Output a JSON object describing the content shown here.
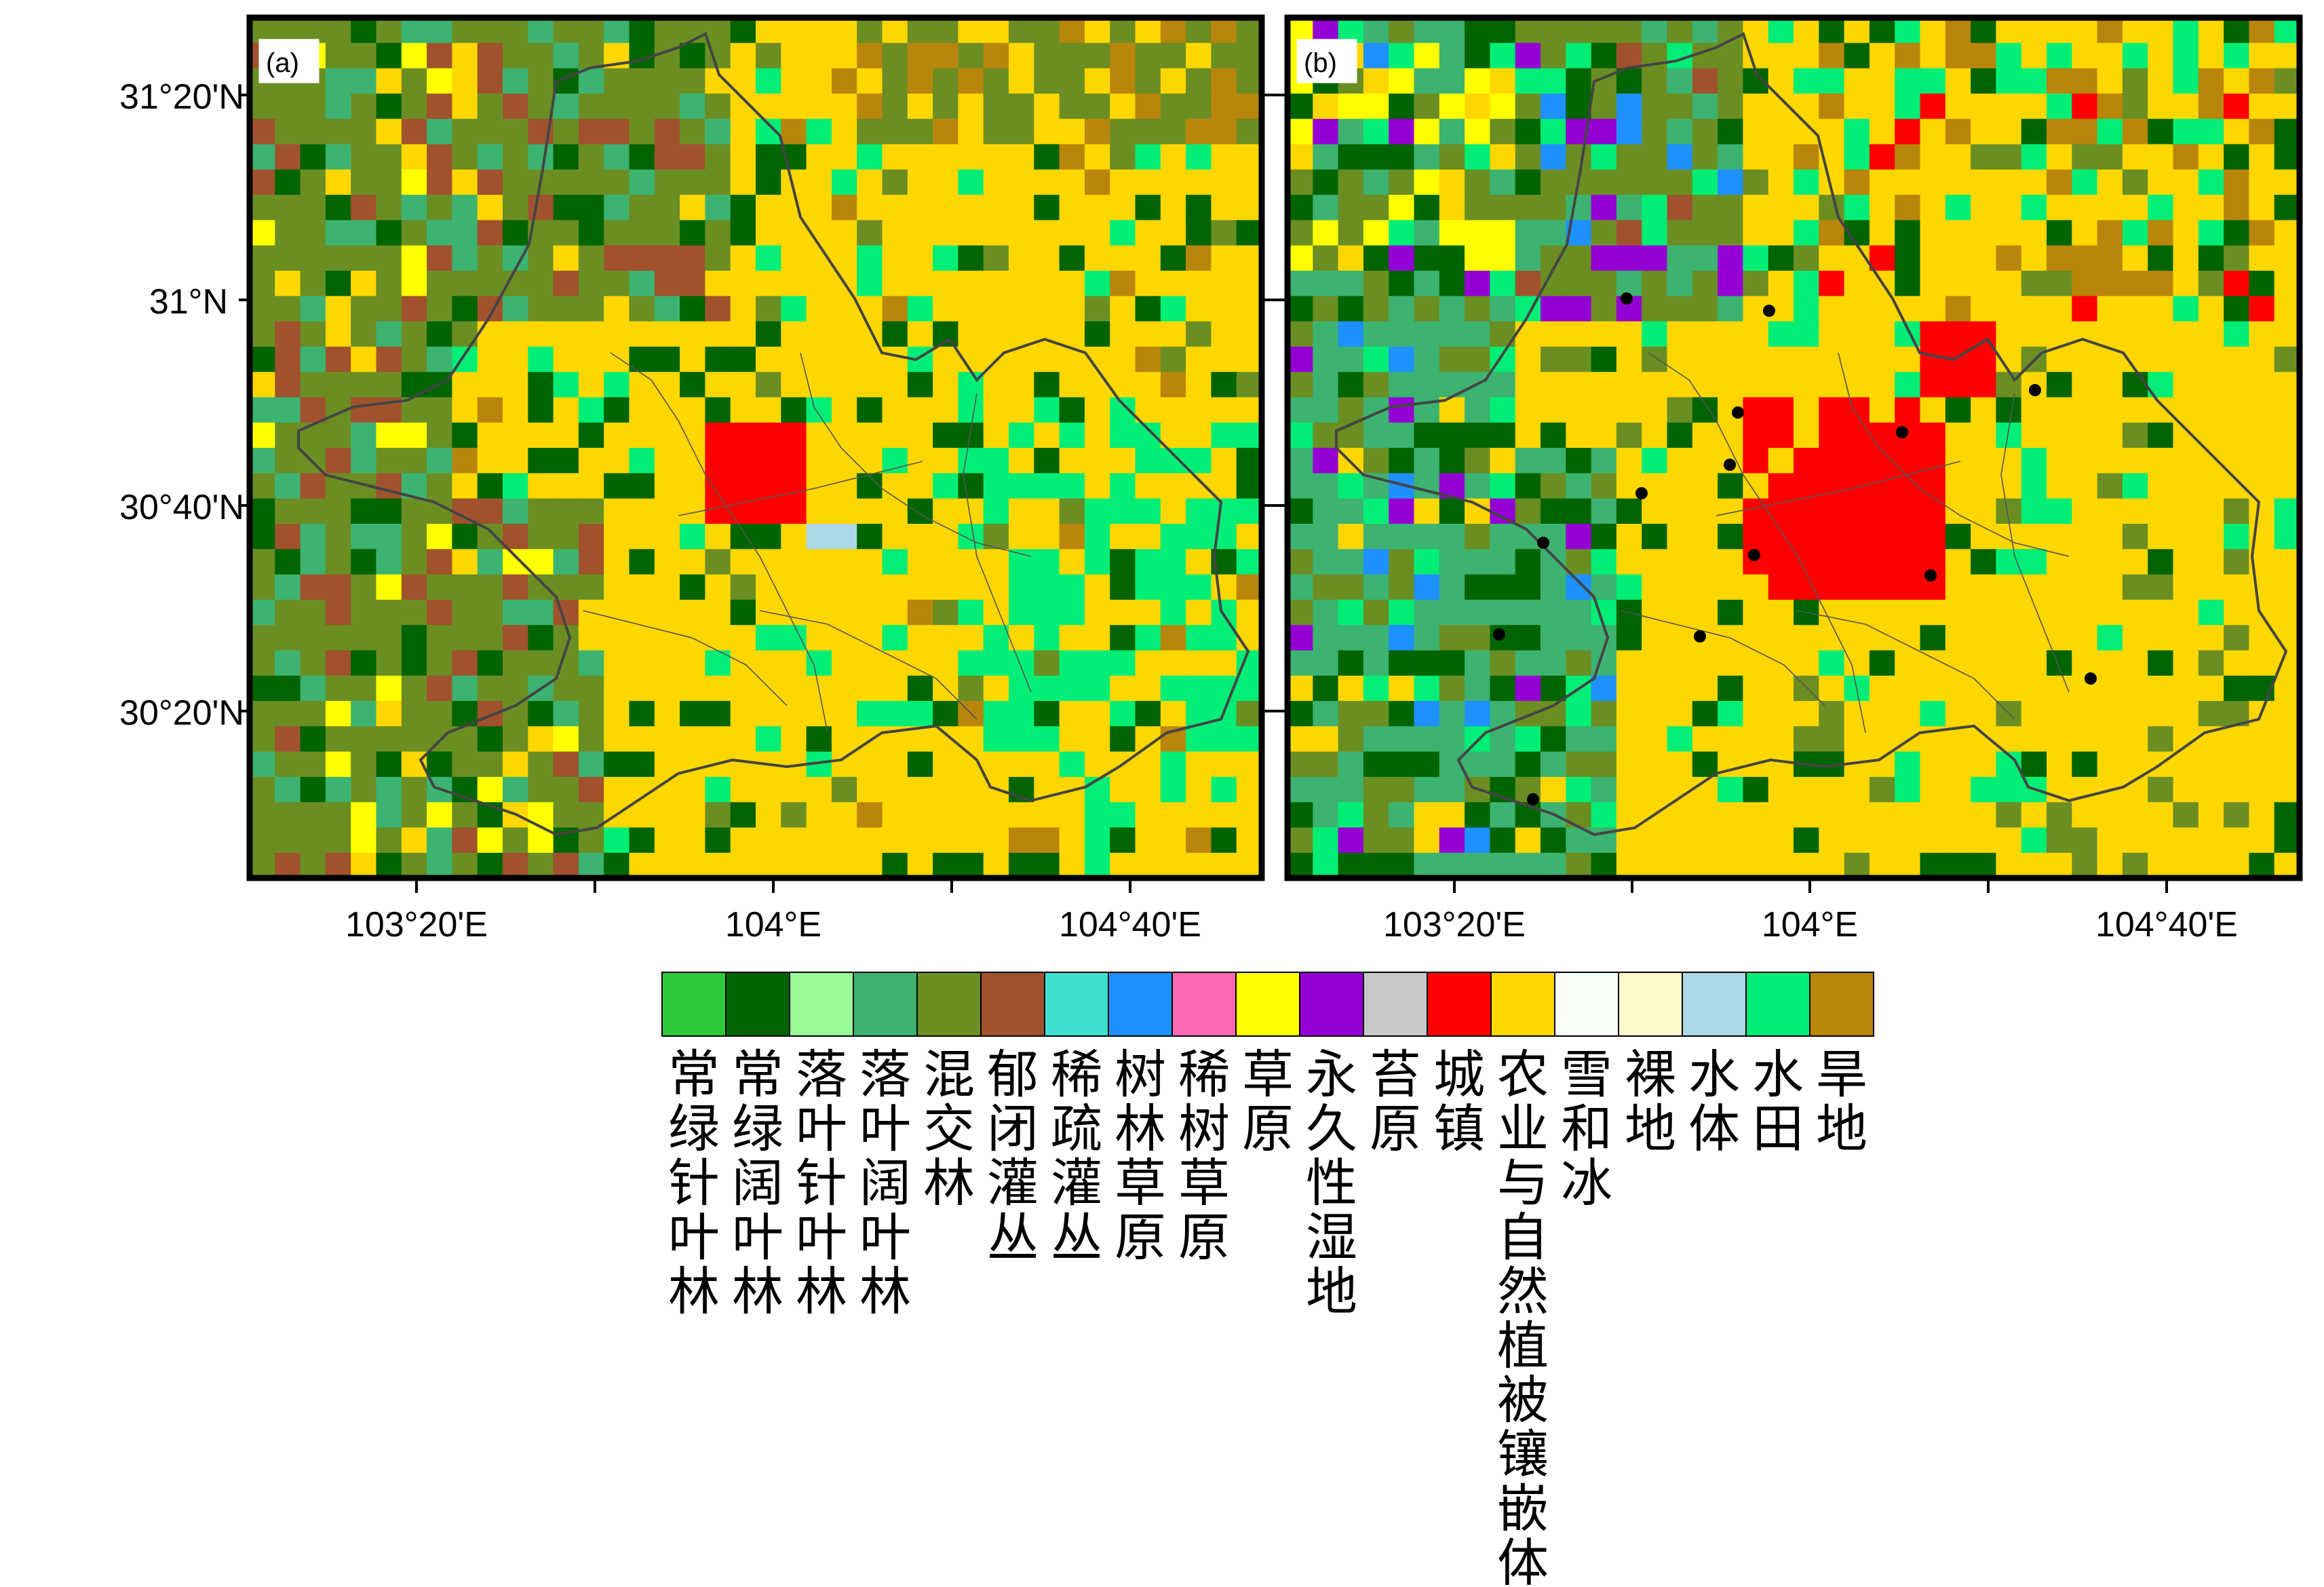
{
  "panels": [
    {
      "label": "(a)",
      "variant": "a"
    },
    {
      "label": "(b)",
      "variant": "b"
    }
  ],
  "axes": {
    "lat_ticks": [
      "31°20'N",
      "31°N",
      "30°40'N",
      "30°20'N"
    ],
    "lon_tick_labels": [
      "103°20'E",
      "104°E",
      "104°40'E"
    ]
  },
  "legend": [
    {
      "label": "常绿针叶林",
      "color": "#2ec83a"
    },
    {
      "label": "常绿阔叶林",
      "color": "#006400"
    },
    {
      "label": "落叶针叶林",
      "color": "#98fb98"
    },
    {
      "label": "落叶阔叶林",
      "color": "#3cb371"
    },
    {
      "label": "混交林",
      "color": "#6b8e23"
    },
    {
      "label": "郁闭灌丛",
      "color": "#a0522d"
    },
    {
      "label": "稀疏灌丛",
      "color": "#40e0d0"
    },
    {
      "label": "树林草原",
      "color": "#1e90ff"
    },
    {
      "label": "稀树草原",
      "color": "#ff69b4"
    },
    {
      "label": "草原",
      "color": "#ffff00"
    },
    {
      "label": "永久性湿地",
      "color": "#9400d3"
    },
    {
      "label": "苔原",
      "color": "#c8c8c8"
    },
    {
      "label": "城镇",
      "color": "#ff0000"
    },
    {
      "label": "农业与自然植被镶嵌体",
      "color": "#ffd700"
    },
    {
      "label": "雪和冰",
      "color": "#f8fff8"
    },
    {
      "label": "裸地",
      "color": "#fffacd"
    },
    {
      "label": "水体",
      "color": "#add8e6"
    },
    {
      "label": "水田",
      "color": "#00ee76"
    },
    {
      "label": "旱地",
      "color": "#b8860b"
    }
  ]
}
